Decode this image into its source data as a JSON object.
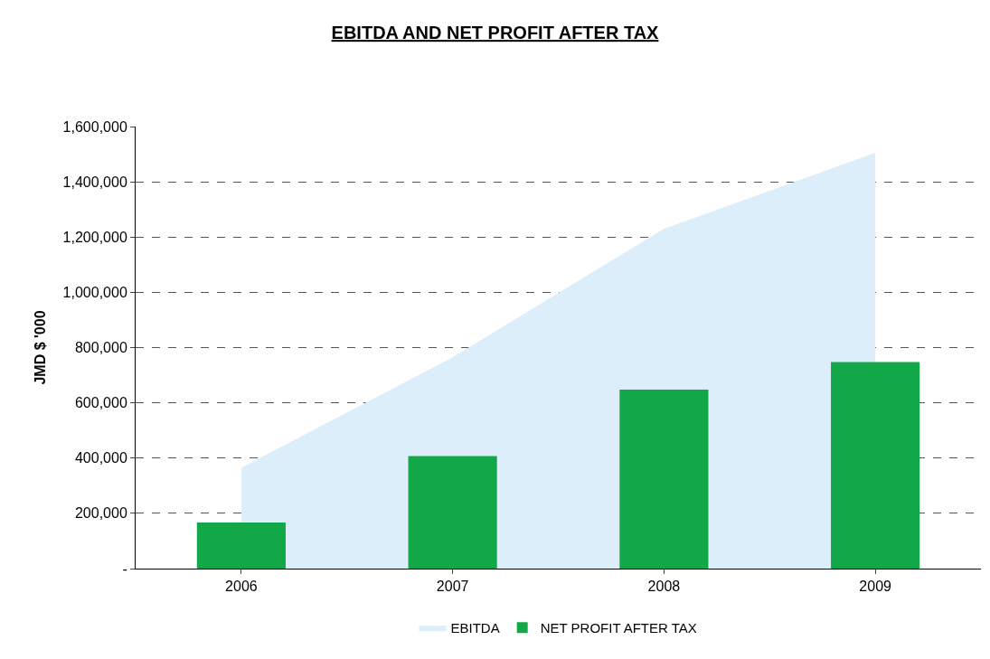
{
  "chart_data": {
    "type": "bar",
    "title": "EBITDA AND NET PROFIT AFTER TAX",
    "ylabel": "JMD $ '000",
    "categories": [
      "2006",
      "2007",
      "2008",
      "2009"
    ],
    "series": [
      {
        "name": "EBITDA",
        "type": "area",
        "color": "#dbeefa",
        "values": [
          365000,
          765000,
          1230000,
          1505000
        ]
      },
      {
        "name": "NET PROFIT AFTER TAX",
        "color": "#12a84a",
        "values": [
          167000,
          407000,
          648000,
          748000
        ]
      }
    ],
    "ylim": [
      0,
      1600000
    ],
    "yticks": [
      {
        "value": 0,
        "label": "-"
      },
      {
        "value": 200000,
        "label": "200,000"
      },
      {
        "value": 400000,
        "label": "400,000"
      },
      {
        "value": 600000,
        "label": "600,000"
      },
      {
        "value": 800000,
        "label": "800,000"
      },
      {
        "value": 1000000,
        "label": "1,000,000"
      },
      {
        "value": 1200000,
        "label": "1,200,000"
      },
      {
        "value": 1400000,
        "label": "1,400,000"
      },
      {
        "value": 1600000,
        "label": "1,600,000"
      }
    ],
    "grid": "y",
    "legend": "bottom"
  }
}
